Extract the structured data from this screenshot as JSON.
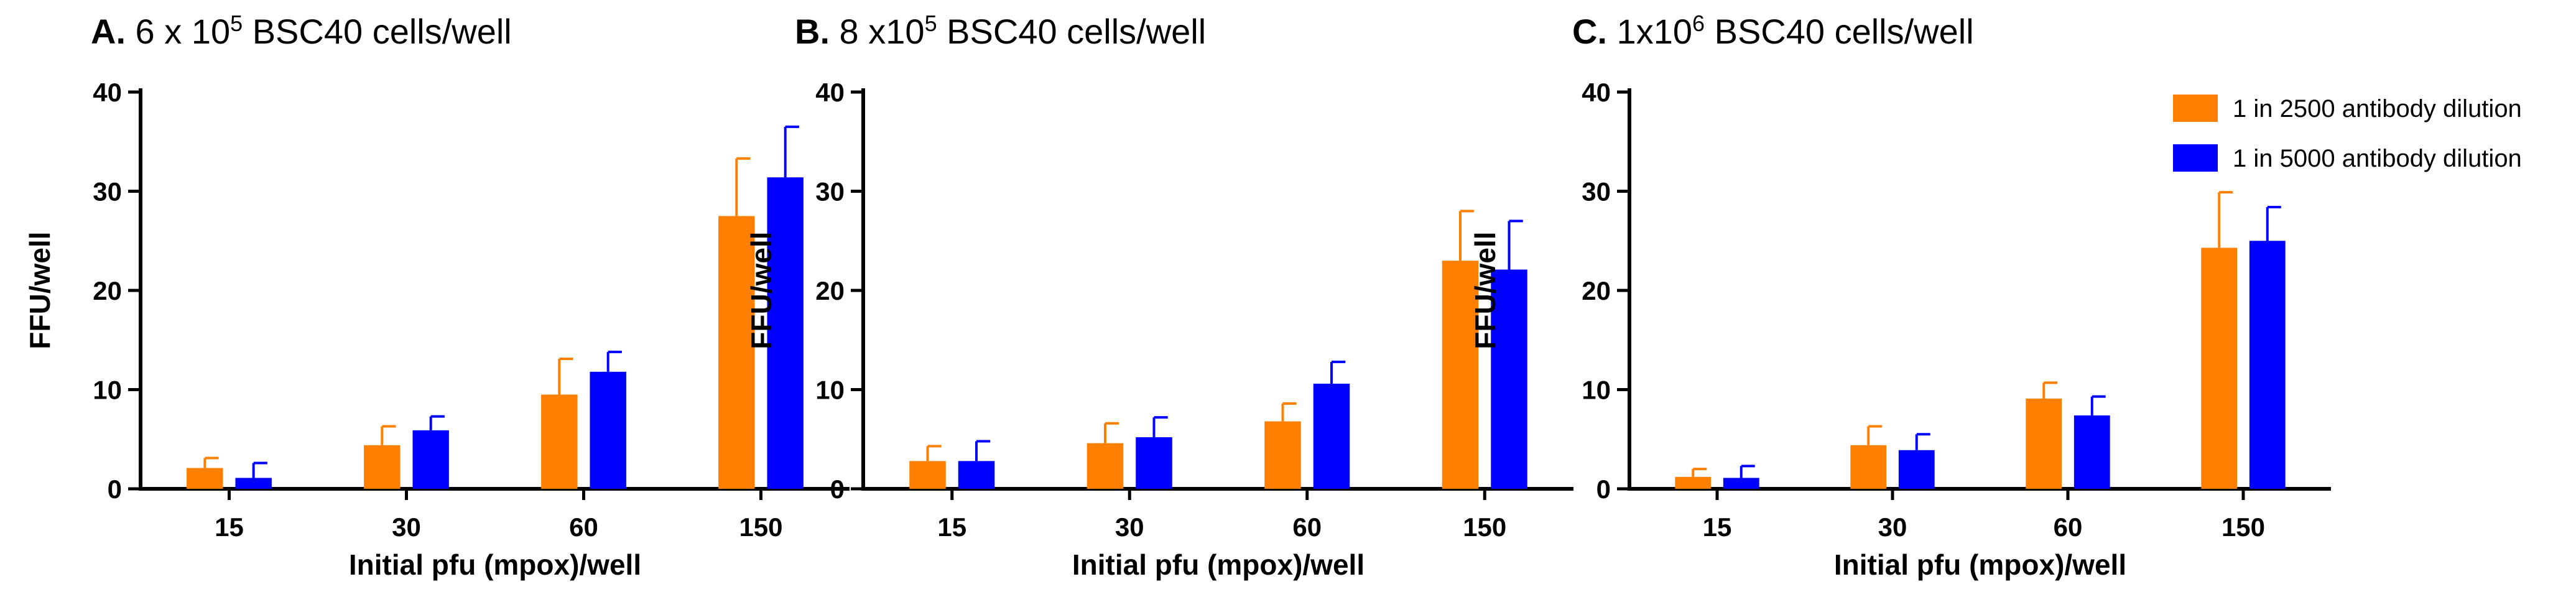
{
  "colors": {
    "series1": "#FF8000",
    "series2": "#0000FF",
    "err_series1": "#FF8000",
    "err_series2": "#0000FF",
    "axis": "#000000"
  },
  "legend": {
    "items": [
      {
        "label": "1 in 2500 antibody dilution",
        "color": "#FF8000"
      },
      {
        "label": "1 in 5000 antibody dilution",
        "color": "#0000FF"
      }
    ]
  },
  "chart_data": [
    {
      "type": "bar",
      "title_parts": {
        "letter": "A.",
        "pre": " 6 x 10",
        "sup": "5",
        "post": " BSC40 cells/well"
      },
      "categories": [
        "15",
        "30",
        "60",
        "150"
      ],
      "xlabel": "Initial pfu (mpox)/well",
      "ylabel": "FFU/well",
      "ylim": [
        0,
        40
      ],
      "yticks": [
        "0",
        "10",
        "20",
        "30",
        "40"
      ],
      "series": [
        {
          "name": "1 in 2500 antibody dilution",
          "values": [
            2.1,
            4.4,
            9.5,
            27.5
          ],
          "errors": [
            1.0,
            1.9,
            3.6,
            5.8
          ]
        },
        {
          "name": "1 in 5000 antibody dilution",
          "values": [
            1.1,
            5.9,
            11.8,
            31.4
          ],
          "errors": [
            1.5,
            1.4,
            2.0,
            5.1
          ]
        }
      ]
    },
    {
      "type": "bar",
      "title_parts": {
        "letter": "B.",
        "pre": " 8 x10",
        "sup": "5",
        "post": " BSC40 cells/well"
      },
      "categories": [
        "15",
        "30",
        "60",
        "150"
      ],
      "xlabel": "Initial pfu (mpox)/well",
      "ylabel": "FFU/well",
      "ylim": [
        0,
        40
      ],
      "yticks": [
        "0",
        "10",
        "20",
        "30",
        "40"
      ],
      "series": [
        {
          "name": "1 in 2500 antibody dilution",
          "values": [
            2.8,
            4.6,
            6.8,
            23.0
          ],
          "errors": [
            1.5,
            2.0,
            1.8,
            5.0
          ]
        },
        {
          "name": "1 in 5000 antibody dilution",
          "values": [
            2.8,
            5.2,
            10.6,
            22.1
          ],
          "errors": [
            2.0,
            2.0,
            2.2,
            4.9
          ]
        }
      ]
    },
    {
      "type": "bar",
      "title_parts": {
        "letter": "C.",
        "pre": " 1x10",
        "sup": "6",
        "post": " BSC40 cells/well"
      },
      "categories": [
        "15",
        "30",
        "60",
        "150"
      ],
      "xlabel": "Initial pfu (mpox)/well",
      "ylabel": "FFU/well",
      "ylim": [
        0,
        40
      ],
      "yticks": [
        "0",
        "10",
        "20",
        "30",
        "40"
      ],
      "series": [
        {
          "name": "1 in 2500 antibody dilution",
          "values": [
            1.2,
            4.4,
            9.1,
            24.3
          ],
          "errors": [
            0.8,
            1.9,
            1.6,
            5.6
          ]
        },
        {
          "name": "1 in 5000 antibody dilution",
          "values": [
            1.1,
            3.9,
            7.4,
            25.0
          ],
          "errors": [
            1.2,
            1.6,
            1.9,
            3.4
          ]
        }
      ]
    }
  ]
}
